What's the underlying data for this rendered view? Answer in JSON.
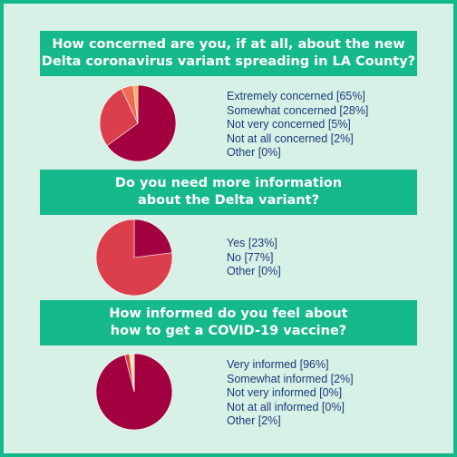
{
  "chart_data": [
    {
      "type": "pie",
      "title": "How concerned are you, if at all, about the new\nDelta coronavirus variant spreading in LA County?",
      "legend": [
        "Extremely concerned [65%]",
        "Somewhat concerned [28%]",
        "Not very concerned [5%]",
        "Not at all concerned [2%]",
        "Other [0%]"
      ],
      "categories": [
        "Extremely concerned",
        "Somewhat concerned",
        "Not very concerned",
        "Not at all concerned",
        "Other"
      ],
      "values": [
        65,
        28,
        5,
        2,
        0
      ],
      "colors": [
        "#a3003f",
        "#db3f4c",
        "#f26a52",
        "#f9b25a",
        "#fde8a6"
      ]
    },
    {
      "type": "pie",
      "title": "Do you need more information\nabout the Delta variant?",
      "legend": [
        "Yes [23%]",
        "No [77%]",
        "Other [0%]"
      ],
      "categories": [
        "Yes",
        "No",
        "Other"
      ],
      "values": [
        23,
        77,
        0
      ],
      "colors": [
        "#a3003f",
        "#db3f4c",
        "#fde8a6"
      ]
    },
    {
      "type": "pie",
      "title": "How informed do you feel about\nhow to get a COVID-19 vaccine?",
      "legend": [
        "Very informed [96%]",
        "Somewhat informed [2%]",
        "Not very informed [0%]",
        "Not at all informed [0%]",
        "Other [2%]"
      ],
      "categories": [
        "Very informed",
        "Somewhat informed",
        "Not very informed",
        "Not at all informed",
        "Other"
      ],
      "values": [
        96,
        2,
        0,
        0,
        2
      ],
      "colors": [
        "#a3003f",
        "#db3f4c",
        "#f26a52",
        "#f9b25a",
        "#fde8a6"
      ]
    }
  ]
}
